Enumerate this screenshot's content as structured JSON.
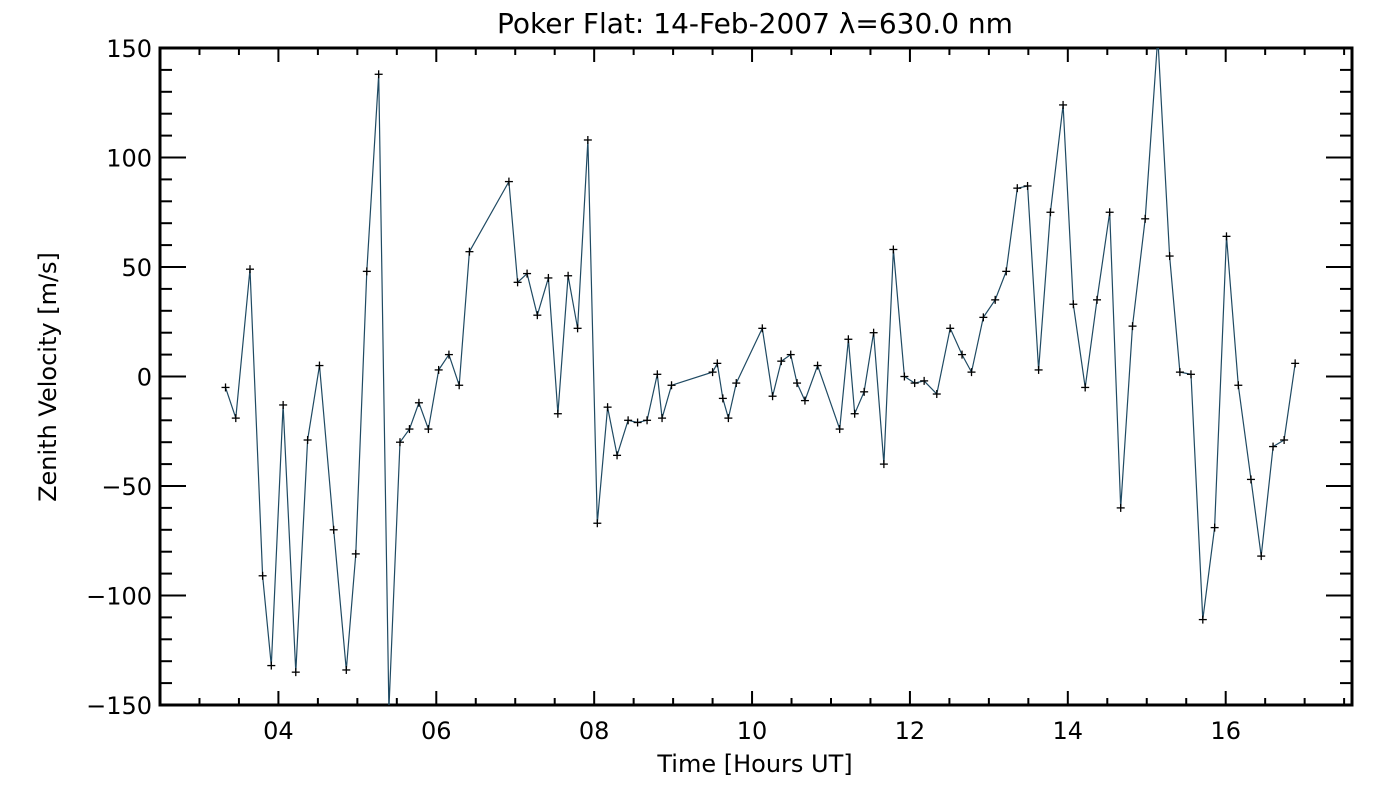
{
  "chart_data": {
    "type": "line",
    "title": "Poker Flat: 14-Feb-2007 λ=630.0 nm",
    "xlabel": "Time [Hours UT]",
    "ylabel": "Zenith Velocity [m/s]",
    "xlim": [
      2.5,
      17.6
    ],
    "ylim": [
      -150,
      150
    ],
    "xticks": [
      4,
      6,
      8,
      10,
      12,
      14,
      16
    ],
    "xtick_labels": [
      "04",
      "06",
      "08",
      "10",
      "12",
      "14",
      "16"
    ],
    "yticks": [
      -150,
      -100,
      -50,
      0,
      50,
      100,
      150
    ],
    "ytick_labels": [
      "−150",
      "−100",
      "−50",
      "0",
      "50",
      "100",
      "150"
    ],
    "grid": false,
    "line_color": "#1f4a63",
    "marker": "+",
    "series": [
      {
        "x": [
          3.33,
          3.46,
          3.64,
          3.8,
          3.91,
          4.06,
          4.22,
          4.37,
          4.52,
          4.7,
          4.86,
          4.98,
          5.12,
          5.27,
          5.4,
          5.54,
          5.66,
          5.78,
          5.9,
          6.03,
          6.16,
          6.29,
          6.42,
          6.92,
          7.03,
          7.15,
          7.28,
          7.42,
          7.54,
          7.67,
          7.79,
          7.92,
          8.04,
          8.17,
          8.29,
          8.43,
          8.55,
          8.67,
          8.8,
          8.86,
          8.98,
          9.5,
          9.56,
          9.63,
          9.7,
          9.8,
          10.13,
          10.26,
          10.37,
          10.49,
          10.57,
          10.67,
          10.83,
          11.11,
          11.22,
          11.3,
          11.42,
          11.54,
          11.67,
          11.79,
          11.93,
          12.06,
          12.18,
          12.34,
          12.51,
          12.66,
          12.78,
          12.93,
          13.08,
          13.22,
          13.36,
          13.49,
          13.63,
          13.78,
          13.94,
          14.07,
          14.22,
          14.37,
          14.53,
          14.67,
          14.82,
          14.98,
          15.14,
          15.29,
          15.42,
          15.56,
          15.71,
          15.86,
          16.01,
          16.16,
          16.32,
          16.45,
          16.6,
          16.74,
          16.88
        ],
        "values": [
          -5,
          -19,
          49,
          -91,
          -132,
          -13,
          -135,
          -29,
          5,
          -70,
          -134,
          -81,
          48,
          138,
          -152,
          -30,
          -24,
          -12,
          -24,
          3,
          10,
          -4,
          57,
          89,
          43,
          47,
          28,
          45,
          -17,
          46,
          22,
          108,
          -67,
          -14,
          -36,
          -20,
          -21,
          -20,
          1,
          -19,
          -4,
          2,
          6,
          -10,
          -19,
          -3,
          22,
          -9,
          7,
          10,
          -3,
          -11,
          5,
          -24,
          17,
          -17,
          -7,
          20,
          -40,
          58,
          0,
          -3,
          -2,
          -8,
          22,
          10,
          2,
          27,
          35,
          48,
          86,
          87,
          3,
          75,
          124,
          33,
          -5,
          35,
          75,
          -60,
          23,
          72,
          155,
          55,
          2,
          1,
          -111,
          -69,
          64,
          -4,
          -47,
          -82,
          -32,
          -29,
          6
        ]
      }
    ]
  }
}
